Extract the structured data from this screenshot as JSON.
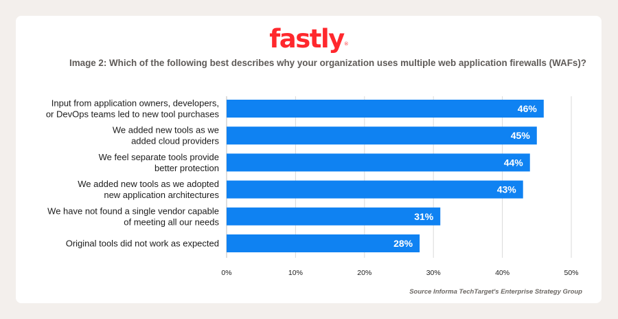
{
  "brand": {
    "name": "fastly",
    "color": "#ff282d"
  },
  "question": "Image 2: Which of the following best describes why your organization uses multiple web application firewalls (WAFs)?",
  "source": "Source Informa TechTarget's Enterprise Strategy Group",
  "colors": {
    "bar": "#0f82f2",
    "grid": "#d9d9d9",
    "background": "#f3efec",
    "card": "#ffffff"
  },
  "chart_data": {
    "type": "bar",
    "orientation": "horizontal",
    "title": "Image 2: Which of the following best describes why your organization uses multiple web application firewalls (WAFs)?",
    "categories": [
      [
        "Input from application owners, developers,",
        "or DevOps teams led to new tool purchases"
      ],
      [
        "We added new tools as we",
        "added cloud providers"
      ],
      [
        "We feel separate tools provide",
        "better protection"
      ],
      [
        "We added new tools as we adopted",
        "new application architectures"
      ],
      [
        "We have not found a single vendor capable",
        "of meeting all our needs"
      ],
      [
        "Original tools did not work as expected"
      ]
    ],
    "values": [
      46,
      45,
      44,
      43,
      31,
      28
    ],
    "value_labels": [
      "46%",
      "45%",
      "44%",
      "43%",
      "31%",
      "28%"
    ],
    "xlim": [
      0,
      50
    ],
    "xticks": [
      0,
      10,
      20,
      30,
      40,
      50
    ],
    "xtick_labels": [
      "0%",
      "10%",
      "20%",
      "30%",
      "40%",
      "50%"
    ],
    "grid": "vertical",
    "legend": "none"
  }
}
